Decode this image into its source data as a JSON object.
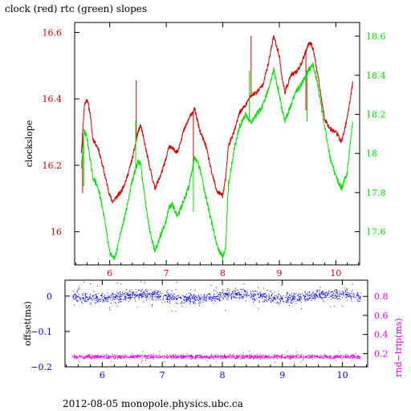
{
  "title": "clock (red) rtc (green) slopes",
  "footer": "2012-08-05  monopole.physics.ubc.ca",
  "colors": {
    "red": "#d40000",
    "green": "#00e000",
    "blue": "#0000e6",
    "magenta": "#e000e0",
    "frame": "#000000"
  },
  "chart_data": [
    {
      "type": "line",
      "title": "clock (red) rtc (green) slopes",
      "xlim": [
        5.38,
        10.42
      ],
      "x_ticks": [
        6,
        7,
        8,
        9,
        10
      ],
      "x_tick_labels": [
        "6",
        "7",
        "8",
        "9",
        "10"
      ],
      "left_axis": {
        "label": "clockslope",
        "lim": [
          15.9,
          16.63
        ],
        "ticks": [
          16,
          16.2,
          16.4,
          16.6
        ],
        "tick_labels": [
          "16",
          "16.2",
          "16.4",
          "16.6"
        ]
      },
      "right_axis": {
        "label": "",
        "lim": [
          17.43,
          18.67
        ],
        "ticks": [
          17.6,
          17.8,
          18,
          18.2,
          18.4,
          18.6
        ],
        "tick_labels": [
          "17.6",
          "17.8",
          "18",
          "18.2",
          "18.4",
          "18.6"
        ]
      },
      "series": [
        {
          "name": "clock",
          "color": "red",
          "axis": "left",
          "x": [
            5.5,
            5.55,
            5.6,
            5.65,
            5.7,
            5.8,
            5.9,
            6.0,
            6.05,
            6.1,
            6.2,
            6.3,
            6.4,
            6.5,
            6.55,
            6.6,
            6.7,
            6.8,
            6.9,
            7.0,
            7.05,
            7.1,
            7.2,
            7.3,
            7.4,
            7.5,
            7.6,
            7.7,
            7.8,
            7.9,
            8.0,
            8.05,
            8.1,
            8.2,
            8.3,
            8.4,
            8.5,
            8.6,
            8.7,
            8.8,
            8.9,
            9.0,
            9.05,
            9.1,
            9.2,
            9.3,
            9.4,
            9.5,
            9.55,
            9.6,
            9.7,
            9.8,
            9.9,
            10.0,
            10.1,
            10.2,
            10.3
          ],
          "y": [
            16.24,
            16.38,
            16.4,
            16.36,
            16.28,
            16.25,
            16.18,
            16.11,
            16.09,
            16.1,
            16.12,
            16.16,
            16.22,
            16.3,
            16.32,
            16.28,
            16.2,
            16.13,
            16.17,
            16.22,
            16.26,
            16.25,
            16.24,
            16.3,
            16.34,
            16.37,
            16.3,
            16.26,
            16.18,
            16.12,
            16.11,
            16.16,
            16.26,
            16.3,
            16.36,
            16.38,
            16.41,
            16.42,
            16.44,
            16.5,
            16.59,
            16.53,
            16.46,
            16.42,
            16.47,
            16.48,
            16.51,
            16.56,
            16.57,
            16.55,
            16.45,
            16.34,
            16.31,
            16.3,
            16.27,
            16.34,
            16.45
          ]
        },
        {
          "name": "rtc",
          "color": "green",
          "axis": "right",
          "x": [
            5.5,
            5.55,
            5.6,
            5.65,
            5.7,
            5.8,
            5.9,
            6.0,
            6.05,
            6.1,
            6.2,
            6.3,
            6.4,
            6.5,
            6.55,
            6.6,
            6.7,
            6.8,
            6.9,
            7.0,
            7.05,
            7.1,
            7.2,
            7.3,
            7.4,
            7.5,
            7.6,
            7.7,
            7.8,
            7.9,
            8.0,
            8.05,
            8.1,
            8.2,
            8.3,
            8.4,
            8.5,
            8.6,
            8.7,
            8.8,
            8.9,
            9.0,
            9.05,
            9.1,
            9.2,
            9.3,
            9.4,
            9.5,
            9.55,
            9.6,
            9.7,
            9.8,
            9.9,
            10.0,
            10.1,
            10.2,
            10.3
          ],
          "y": [
            17.93,
            18.12,
            18.08,
            17.98,
            17.88,
            17.82,
            17.68,
            17.5,
            17.46,
            17.47,
            17.6,
            17.72,
            17.86,
            17.96,
            17.94,
            17.82,
            17.62,
            17.5,
            17.58,
            17.66,
            17.72,
            17.74,
            17.68,
            17.75,
            17.83,
            17.98,
            17.92,
            17.78,
            17.65,
            17.53,
            17.47,
            17.52,
            17.84,
            18.02,
            18.14,
            18.2,
            18.16,
            18.2,
            18.24,
            18.32,
            18.43,
            18.3,
            18.22,
            18.17,
            18.24,
            18.32,
            18.36,
            18.42,
            18.44,
            18.46,
            18.32,
            18.14,
            17.98,
            17.88,
            17.82,
            17.9,
            18.17
          ]
        }
      ]
    },
    {
      "type": "scatter",
      "xlim": [
        5.38,
        10.42
      ],
      "x_ticks": [
        6,
        7,
        8,
        9,
        10
      ],
      "x_tick_labels": [
        "6",
        "7",
        "8",
        "9",
        "10"
      ],
      "left_axis": {
        "label": "offset(ms)",
        "lim": [
          -0.2,
          0.045
        ],
        "ticks": [
          0,
          -0.1,
          -0.2
        ],
        "tick_labels": [
          "0",
          "−0.1",
          "−0.2"
        ]
      },
      "right_axis": {
        "label": "rnd−trip(ms)",
        "lim": [
          0.06,
          0.97
        ],
        "ticks": [
          0.2,
          0.4,
          0.6,
          0.8
        ],
        "tick_labels": [
          "0.2",
          "0.4",
          "0.6",
          "0.8"
        ]
      },
      "series": [
        {
          "name": "offset",
          "color": "blue",
          "axis": "left",
          "center": 0.0,
          "spread": 0.015
        },
        {
          "name": "rnd-trip",
          "color": "magenta",
          "axis": "right",
          "center": 0.17,
          "spread": 0.02
        }
      ]
    }
  ]
}
